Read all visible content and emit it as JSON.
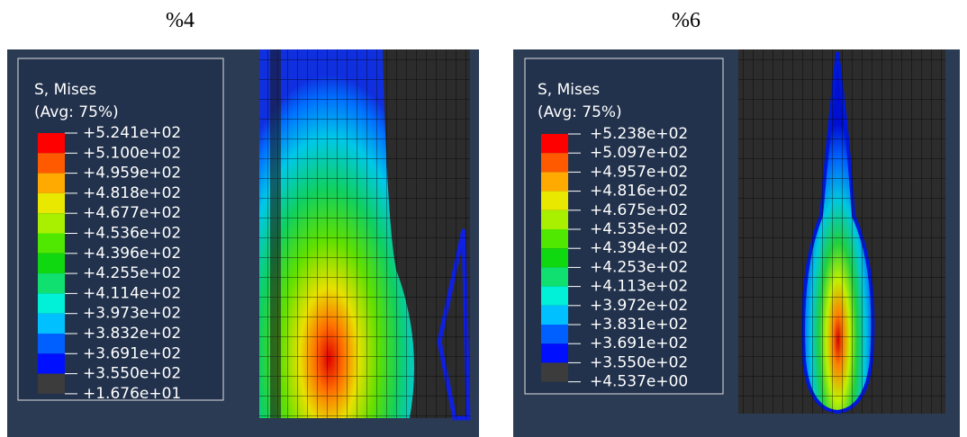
{
  "captions": [
    "%4",
    "%6"
  ],
  "panels": [
    {
      "legend": {
        "title": "S, Mises",
        "subtitle": "(Avg: 75%)",
        "labels": [
          "+5.241e+02",
          "+5.100e+02",
          "+4.959e+02",
          "+4.818e+02",
          "+4.677e+02",
          "+4.536e+02",
          "+4.396e+02",
          "+4.255e+02",
          "+4.114e+02",
          "+3.973e+02",
          "+3.832e+02",
          "+3.691e+02",
          "+3.550e+02",
          "+1.676e+01"
        ]
      }
    },
    {
      "legend": {
        "title": "S, Mises",
        "subtitle": "(Avg: 75%)",
        "labels": [
          "+5.238e+02",
          "+5.097e+02",
          "+4.957e+02",
          "+4.816e+02",
          "+4.675e+02",
          "+4.535e+02",
          "+4.394e+02",
          "+4.253e+02",
          "+4.113e+02",
          "+3.972e+02",
          "+3.831e+02",
          "+3.691e+02",
          "+3.550e+02",
          "+4.537e+00"
        ]
      }
    }
  ]
}
